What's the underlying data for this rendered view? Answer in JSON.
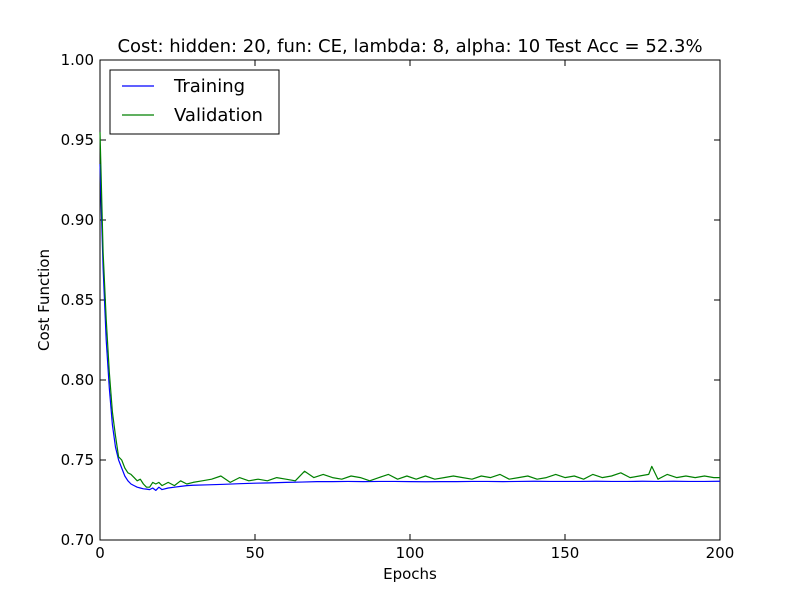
{
  "chart_data": {
    "type": "line",
    "title": "Cost: hidden: 20, fun: CE, lambda: 8, alpha: 10  Test Acc = 52.3%",
    "xlabel": "Epochs",
    "ylabel": "Cost Function",
    "xlim": [
      0,
      200
    ],
    "ylim": [
      0.7,
      1.0
    ],
    "xticks": [
      0,
      50,
      100,
      150,
      200
    ],
    "yticks": [
      0.7,
      0.75,
      0.8,
      0.85,
      0.9,
      0.95,
      1.0
    ],
    "xtick_labels": [
      "0",
      "50",
      "100",
      "150",
      "200"
    ],
    "ytick_labels": [
      "0.70",
      "0.75",
      "0.80",
      "0.85",
      "0.90",
      "0.95",
      "1.00"
    ],
    "grid": false,
    "legend_position": "top-left",
    "series": [
      {
        "name": "Training",
        "color": "#0000ff",
        "x": [
          0,
          1,
          2,
          3,
          4,
          5,
          6,
          7,
          8,
          9,
          10,
          11,
          12,
          13,
          14,
          15,
          16,
          17,
          18,
          19,
          20,
          22,
          24,
          26,
          28,
          30,
          35,
          40,
          45,
          50,
          55,
          60,
          65,
          70,
          75,
          80,
          85,
          90,
          95,
          100,
          105,
          110,
          115,
          120,
          125,
          130,
          135,
          140,
          145,
          150,
          155,
          160,
          165,
          170,
          175,
          180,
          185,
          190,
          195,
          200
        ],
        "y": [
          0.935,
          0.87,
          0.825,
          0.795,
          0.772,
          0.758,
          0.75,
          0.745,
          0.74,
          0.737,
          0.735,
          0.734,
          0.733,
          0.7325,
          0.732,
          0.7318,
          0.7315,
          0.7325,
          0.731,
          0.733,
          0.7315,
          0.7325,
          0.733,
          0.7335,
          0.734,
          0.7342,
          0.7345,
          0.7348,
          0.7352,
          0.7355,
          0.7357,
          0.736,
          0.7362,
          0.7365,
          0.7365,
          0.7366,
          0.7365,
          0.7366,
          0.7366,
          0.7365,
          0.7364,
          0.7365,
          0.7365,
          0.7366,
          0.7366,
          0.7365,
          0.7366,
          0.7367,
          0.7366,
          0.7366,
          0.7366,
          0.7367,
          0.7366,
          0.7366,
          0.7367,
          0.7366,
          0.7367,
          0.7366,
          0.7366,
          0.7367
        ]
      },
      {
        "name": "Validation",
        "color": "#008000",
        "x": [
          0,
          1,
          2,
          3,
          4,
          5,
          6,
          7,
          8,
          9,
          10,
          11,
          12,
          13,
          14,
          15,
          16,
          17,
          18,
          19,
          20,
          22,
          24,
          26,
          28,
          30,
          33,
          36,
          39,
          42,
          45,
          48,
          51,
          54,
          57,
          60,
          63,
          66,
          69,
          72,
          75,
          78,
          81,
          84,
          87,
          90,
          93,
          96,
          99,
          102,
          105,
          108,
          111,
          114,
          117,
          120,
          123,
          126,
          129,
          132,
          135,
          138,
          141,
          144,
          147,
          150,
          153,
          156,
          159,
          162,
          165,
          168,
          171,
          174,
          177,
          178,
          180,
          183,
          186,
          189,
          192,
          195,
          198,
          200
        ],
        "y": [
          0.955,
          0.88,
          0.838,
          0.805,
          0.78,
          0.765,
          0.752,
          0.75,
          0.745,
          0.742,
          0.741,
          0.739,
          0.737,
          0.738,
          0.735,
          0.733,
          0.733,
          0.736,
          0.735,
          0.736,
          0.734,
          0.736,
          0.734,
          0.737,
          0.735,
          0.736,
          0.737,
          0.738,
          0.74,
          0.736,
          0.739,
          0.737,
          0.738,
          0.737,
          0.739,
          0.738,
          0.737,
          0.743,
          0.739,
          0.741,
          0.739,
          0.738,
          0.74,
          0.739,
          0.737,
          0.739,
          0.741,
          0.738,
          0.74,
          0.738,
          0.74,
          0.738,
          0.739,
          0.74,
          0.739,
          0.738,
          0.74,
          0.739,
          0.741,
          0.738,
          0.739,
          0.74,
          0.738,
          0.739,
          0.741,
          0.739,
          0.74,
          0.738,
          0.741,
          0.739,
          0.74,
          0.742,
          0.739,
          0.74,
          0.741,
          0.746,
          0.738,
          0.741,
          0.739,
          0.74,
          0.739,
          0.74,
          0.739,
          0.739
        ]
      }
    ]
  },
  "colors": {
    "training": "#0000ff",
    "validation": "#008000",
    "axes": "#000000",
    "background": "#ffffff"
  }
}
